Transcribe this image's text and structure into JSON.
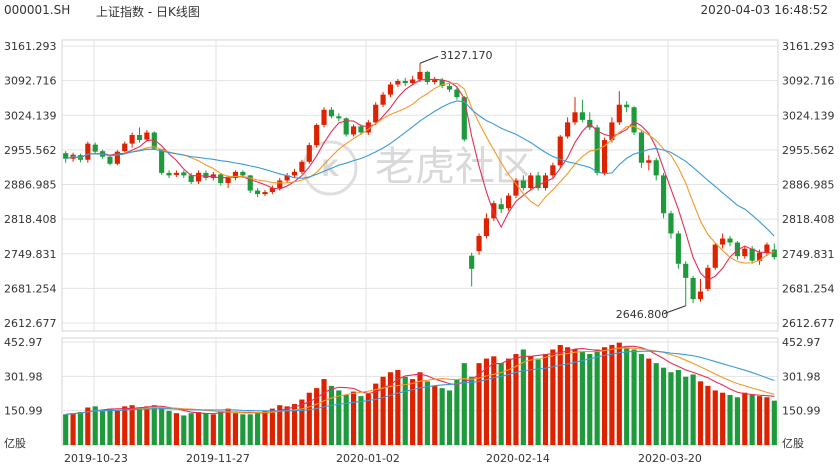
{
  "header": {
    "code": "000001.SH",
    "title": "上证指数 - 日K线图",
    "datetime": "2020-04-03 16:48:52"
  },
  "watermark": "老虎社区",
  "colors": {
    "up": "#dd2200",
    "down": "#1e9a3c",
    "ma5": "#e0305a",
    "ma10": "#f39a28",
    "ma20": "#3a9ad9",
    "grid": "#e3e3e3"
  },
  "chart_data": {
    "type": "candlestick",
    "price_axis": {
      "ticks": [
        "3161.293",
        "3092.716",
        "3024.139",
        "2955.562",
        "2886.985",
        "2818.408",
        "2749.831",
        "2681.254",
        "2612.677"
      ],
      "ylim": [
        2612.677,
        3161.293
      ]
    },
    "volume_axis": {
      "ticks": [
        "452.97",
        "301.98",
        "150.99"
      ],
      "unit_label": "亿股",
      "ylim": [
        0,
        452.97
      ]
    },
    "x_tick_labels": [
      "2019-10-23",
      "2019-11-27",
      "2020-01-02",
      "2020-02-14",
      "2020-03-20"
    ],
    "annotations": [
      {
        "text": "3127.170",
        "label_for": "high"
      },
      {
        "text": "2646.800",
        "label_for": "low"
      }
    ],
    "candles": [
      {
        "o": 2949,
        "c": 2938,
        "h": 2953,
        "l": 2930,
        "v": 135
      },
      {
        "o": 2938,
        "c": 2946,
        "h": 2950,
        "l": 2932,
        "v": 140
      },
      {
        "o": 2945,
        "c": 2936,
        "h": 2948,
        "l": 2931,
        "v": 145
      },
      {
        "o": 2936,
        "c": 2968,
        "h": 2972,
        "l": 2930,
        "v": 165
      },
      {
        "o": 2966,
        "c": 2952,
        "h": 2970,
        "l": 2948,
        "v": 170
      },
      {
        "o": 2953,
        "c": 2942,
        "h": 2956,
        "l": 2938,
        "v": 150
      },
      {
        "o": 2942,
        "c": 2928,
        "h": 2946,
        "l": 2925,
        "v": 160
      },
      {
        "o": 2928,
        "c": 2952,
        "h": 2955,
        "l": 2925,
        "v": 150
      },
      {
        "o": 2953,
        "c": 2968,
        "h": 2972,
        "l": 2950,
        "v": 170
      },
      {
        "o": 2968,
        "c": 2985,
        "h": 2990,
        "l": 2960,
        "v": 175
      },
      {
        "o": 2985,
        "c": 2975,
        "h": 3000,
        "l": 2970,
        "v": 165
      },
      {
        "o": 2976,
        "c": 2990,
        "h": 2995,
        "l": 2972,
        "v": 170
      },
      {
        "o": 2990,
        "c": 2958,
        "h": 2992,
        "l": 2955,
        "v": 175
      },
      {
        "o": 2957,
        "c": 2910,
        "h": 2958,
        "l": 2906,
        "v": 165
      },
      {
        "o": 2910,
        "c": 2905,
        "h": 2915,
        "l": 2900,
        "v": 150
      },
      {
        "o": 2906,
        "c": 2910,
        "h": 2915,
        "l": 2902,
        "v": 140
      },
      {
        "o": 2911,
        "c": 2905,
        "h": 2915,
        "l": 2900,
        "v": 130
      },
      {
        "o": 2905,
        "c": 2892,
        "h": 2910,
        "l": 2888,
        "v": 140
      },
      {
        "o": 2893,
        "c": 2910,
        "h": 2915,
        "l": 2888,
        "v": 145
      },
      {
        "o": 2910,
        "c": 2900,
        "h": 2915,
        "l": 2895,
        "v": 140
      },
      {
        "o": 2900,
        "c": 2907,
        "h": 2912,
        "l": 2895,
        "v": 135
      },
      {
        "o": 2907,
        "c": 2890,
        "h": 2910,
        "l": 2885,
        "v": 150
      },
      {
        "o": 2890,
        "c": 2900,
        "h": 2905,
        "l": 2880,
        "v": 160
      },
      {
        "o": 2900,
        "c": 2912,
        "h": 2915,
        "l": 2895,
        "v": 140
      },
      {
        "o": 2912,
        "c": 2905,
        "h": 2915,
        "l": 2900,
        "v": 135
      },
      {
        "o": 2905,
        "c": 2875,
        "h": 2906,
        "l": 2870,
        "v": 135
      },
      {
        "o": 2875,
        "c": 2868,
        "h": 2880,
        "l": 2862,
        "v": 140
      },
      {
        "o": 2868,
        "c": 2872,
        "h": 2876,
        "l": 2864,
        "v": 150
      },
      {
        "o": 2872,
        "c": 2880,
        "h": 2885,
        "l": 2868,
        "v": 160
      },
      {
        "o": 2880,
        "c": 2895,
        "h": 2900,
        "l": 2875,
        "v": 175
      },
      {
        "o": 2895,
        "c": 2905,
        "h": 2910,
        "l": 2890,
        "v": 170
      },
      {
        "o": 2905,
        "c": 2912,
        "h": 2918,
        "l": 2900,
        "v": 180
      },
      {
        "o": 2912,
        "c": 2932,
        "h": 2936,
        "l": 2908,
        "v": 200
      },
      {
        "o": 2932,
        "c": 2965,
        "h": 2970,
        "l": 2928,
        "v": 230
      },
      {
        "o": 2965,
        "c": 3005,
        "h": 3008,
        "l": 2960,
        "v": 250
      },
      {
        "o": 3005,
        "c": 3035,
        "h": 3040,
        "l": 3000,
        "v": 290
      },
      {
        "o": 3035,
        "c": 3022,
        "h": 3040,
        "l": 3018,
        "v": 260
      },
      {
        "o": 3022,
        "c": 3018,
        "h": 3028,
        "l": 3012,
        "v": 240
      },
      {
        "o": 3018,
        "c": 2986,
        "h": 3020,
        "l": 2982,
        "v": 220
      },
      {
        "o": 2986,
        "c": 3002,
        "h": 3006,
        "l": 2982,
        "v": 235
      },
      {
        "o": 3002,
        "c": 2990,
        "h": 3006,
        "l": 2985,
        "v": 215
      },
      {
        "o": 2990,
        "c": 3010,
        "h": 3015,
        "l": 2985,
        "v": 225
      },
      {
        "o": 3010,
        "c": 3045,
        "h": 3050,
        "l": 3005,
        "v": 270
      },
      {
        "o": 3045,
        "c": 3065,
        "h": 3070,
        "l": 3040,
        "v": 300
      },
      {
        "o": 3065,
        "c": 3085,
        "h": 3090,
        "l": 3060,
        "v": 320
      },
      {
        "o": 3085,
        "c": 3092,
        "h": 3096,
        "l": 3080,
        "v": 330
      },
      {
        "o": 3092,
        "c": 3088,
        "h": 3098,
        "l": 3082,
        "v": 300
      },
      {
        "o": 3088,
        "c": 3095,
        "h": 3102,
        "l": 3083,
        "v": 290
      },
      {
        "o": 3095,
        "c": 3110,
        "h": 3127.17,
        "l": 3090,
        "v": 320
      },
      {
        "o": 3110,
        "c": 3090,
        "h": 3112,
        "l": 3085,
        "v": 280
      },
      {
        "o": 3090,
        "c": 3094,
        "h": 3100,
        "l": 3085,
        "v": 260
      },
      {
        "o": 3094,
        "c": 3082,
        "h": 3098,
        "l": 3078,
        "v": 250
      },
      {
        "o": 3082,
        "c": 3075,
        "h": 3086,
        "l": 3070,
        "v": 240
      },
      {
        "o": 3075,
        "c": 3060,
        "h": 3080,
        "l": 3055,
        "v": 290
      },
      {
        "o": 3060,
        "c": 2976,
        "h": 3062,
        "l": 2972,
        "v": 360
      },
      {
        "o": 2746,
        "c": 2720,
        "h": 2752,
        "l": 2685,
        "v": 300
      },
      {
        "o": 2755,
        "c": 2785,
        "h": 2790,
        "l": 2748,
        "v": 360
      },
      {
        "o": 2785,
        "c": 2820,
        "h": 2830,
        "l": 2780,
        "v": 380
      },
      {
        "o": 2820,
        "c": 2850,
        "h": 2855,
        "l": 2815,
        "v": 390
      },
      {
        "o": 2848,
        "c": 2838,
        "h": 2860,
        "l": 2830,
        "v": 360
      },
      {
        "o": 2840,
        "c": 2865,
        "h": 2870,
        "l": 2835,
        "v": 380
      },
      {
        "o": 2865,
        "c": 2895,
        "h": 2900,
        "l": 2860,
        "v": 400
      },
      {
        "o": 2895,
        "c": 2880,
        "h": 2905,
        "l": 2875,
        "v": 420
      },
      {
        "o": 2880,
        "c": 2905,
        "h": 2910,
        "l": 2875,
        "v": 390
      },
      {
        "o": 2905,
        "c": 2880,
        "h": 2912,
        "l": 2875,
        "v": 380
      },
      {
        "o": 2880,
        "c": 2905,
        "h": 2910,
        "l": 2875,
        "v": 400
      },
      {
        "o": 2905,
        "c": 2925,
        "h": 2930,
        "l": 2900,
        "v": 420
      },
      {
        "o": 2925,
        "c": 2982,
        "h": 2985,
        "l": 2920,
        "v": 440
      },
      {
        "o": 2982,
        "c": 3010,
        "h": 3020,
        "l": 2978,
        "v": 430
      },
      {
        "o": 3010,
        "c": 3030,
        "h": 3060,
        "l": 3005,
        "v": 420
      },
      {
        "o": 3030,
        "c": 3015,
        "h": 3055,
        "l": 3010,
        "v": 410
      },
      {
        "o": 3015,
        "c": 3000,
        "h": 3030,
        "l": 2995,
        "v": 400
      },
      {
        "o": 3000,
        "c": 2910,
        "h": 3005,
        "l": 2905,
        "v": 420
      },
      {
        "o": 2910,
        "c": 2975,
        "h": 2980,
        "l": 2905,
        "v": 430
      },
      {
        "o": 2975,
        "c": 3010,
        "h": 3020,
        "l": 2970,
        "v": 440
      },
      {
        "o": 3010,
        "c": 3045,
        "h": 3072,
        "l": 3005,
        "v": 450
      },
      {
        "o": 3045,
        "c": 3040,
        "h": 3052,
        "l": 3030,
        "v": 430
      },
      {
        "o": 3040,
        "c": 2990,
        "h": 3042,
        "l": 2985,
        "v": 420
      },
      {
        "o": 2990,
        "c": 2930,
        "h": 2995,
        "l": 2920,
        "v": 400
      },
      {
        "o": 2930,
        "c": 2935,
        "h": 2945,
        "l": 2915,
        "v": 380
      },
      {
        "o": 2935,
        "c": 2905,
        "h": 2940,
        "l": 2895,
        "v": 360
      },
      {
        "o": 2905,
        "c": 2830,
        "h": 2910,
        "l": 2820,
        "v": 340
      },
      {
        "o": 2830,
        "c": 2790,
        "h": 2835,
        "l": 2780,
        "v": 320
      },
      {
        "o": 2790,
        "c": 2730,
        "h": 2795,
        "l": 2720,
        "v": 330
      },
      {
        "o": 2730,
        "c": 2702,
        "h": 2735,
        "l": 2646.8,
        "v": 300
      },
      {
        "o": 2702,
        "c": 2660,
        "h": 2706,
        "l": 2652,
        "v": 310
      },
      {
        "o": 2660,
        "c": 2675,
        "h": 2700,
        "l": 2655,
        "v": 280
      },
      {
        "o": 2680,
        "c": 2722,
        "h": 2728,
        "l": 2676,
        "v": 260
      },
      {
        "o": 2722,
        "c": 2768,
        "h": 2772,
        "l": 2718,
        "v": 240
      },
      {
        "o": 2768,
        "c": 2780,
        "h": 2790,
        "l": 2760,
        "v": 230
      },
      {
        "o": 2780,
        "c": 2772,
        "h": 2785,
        "l": 2765,
        "v": 220
      },
      {
        "o": 2772,
        "c": 2745,
        "h": 2775,
        "l": 2738,
        "v": 210
      },
      {
        "o": 2745,
        "c": 2760,
        "h": 2765,
        "l": 2740,
        "v": 230
      },
      {
        "o": 2760,
        "c": 2736,
        "h": 2765,
        "l": 2730,
        "v": 220
      },
      {
        "o": 2736,
        "c": 2752,
        "h": 2758,
        "l": 2728,
        "v": 215
      },
      {
        "o": 2752,
        "c": 2768,
        "h": 2772,
        "l": 2745,
        "v": 210
      },
      {
        "o": 2758,
        "c": 2743,
        "h": 2770,
        "l": 2738,
        "v": 195
      }
    ]
  }
}
